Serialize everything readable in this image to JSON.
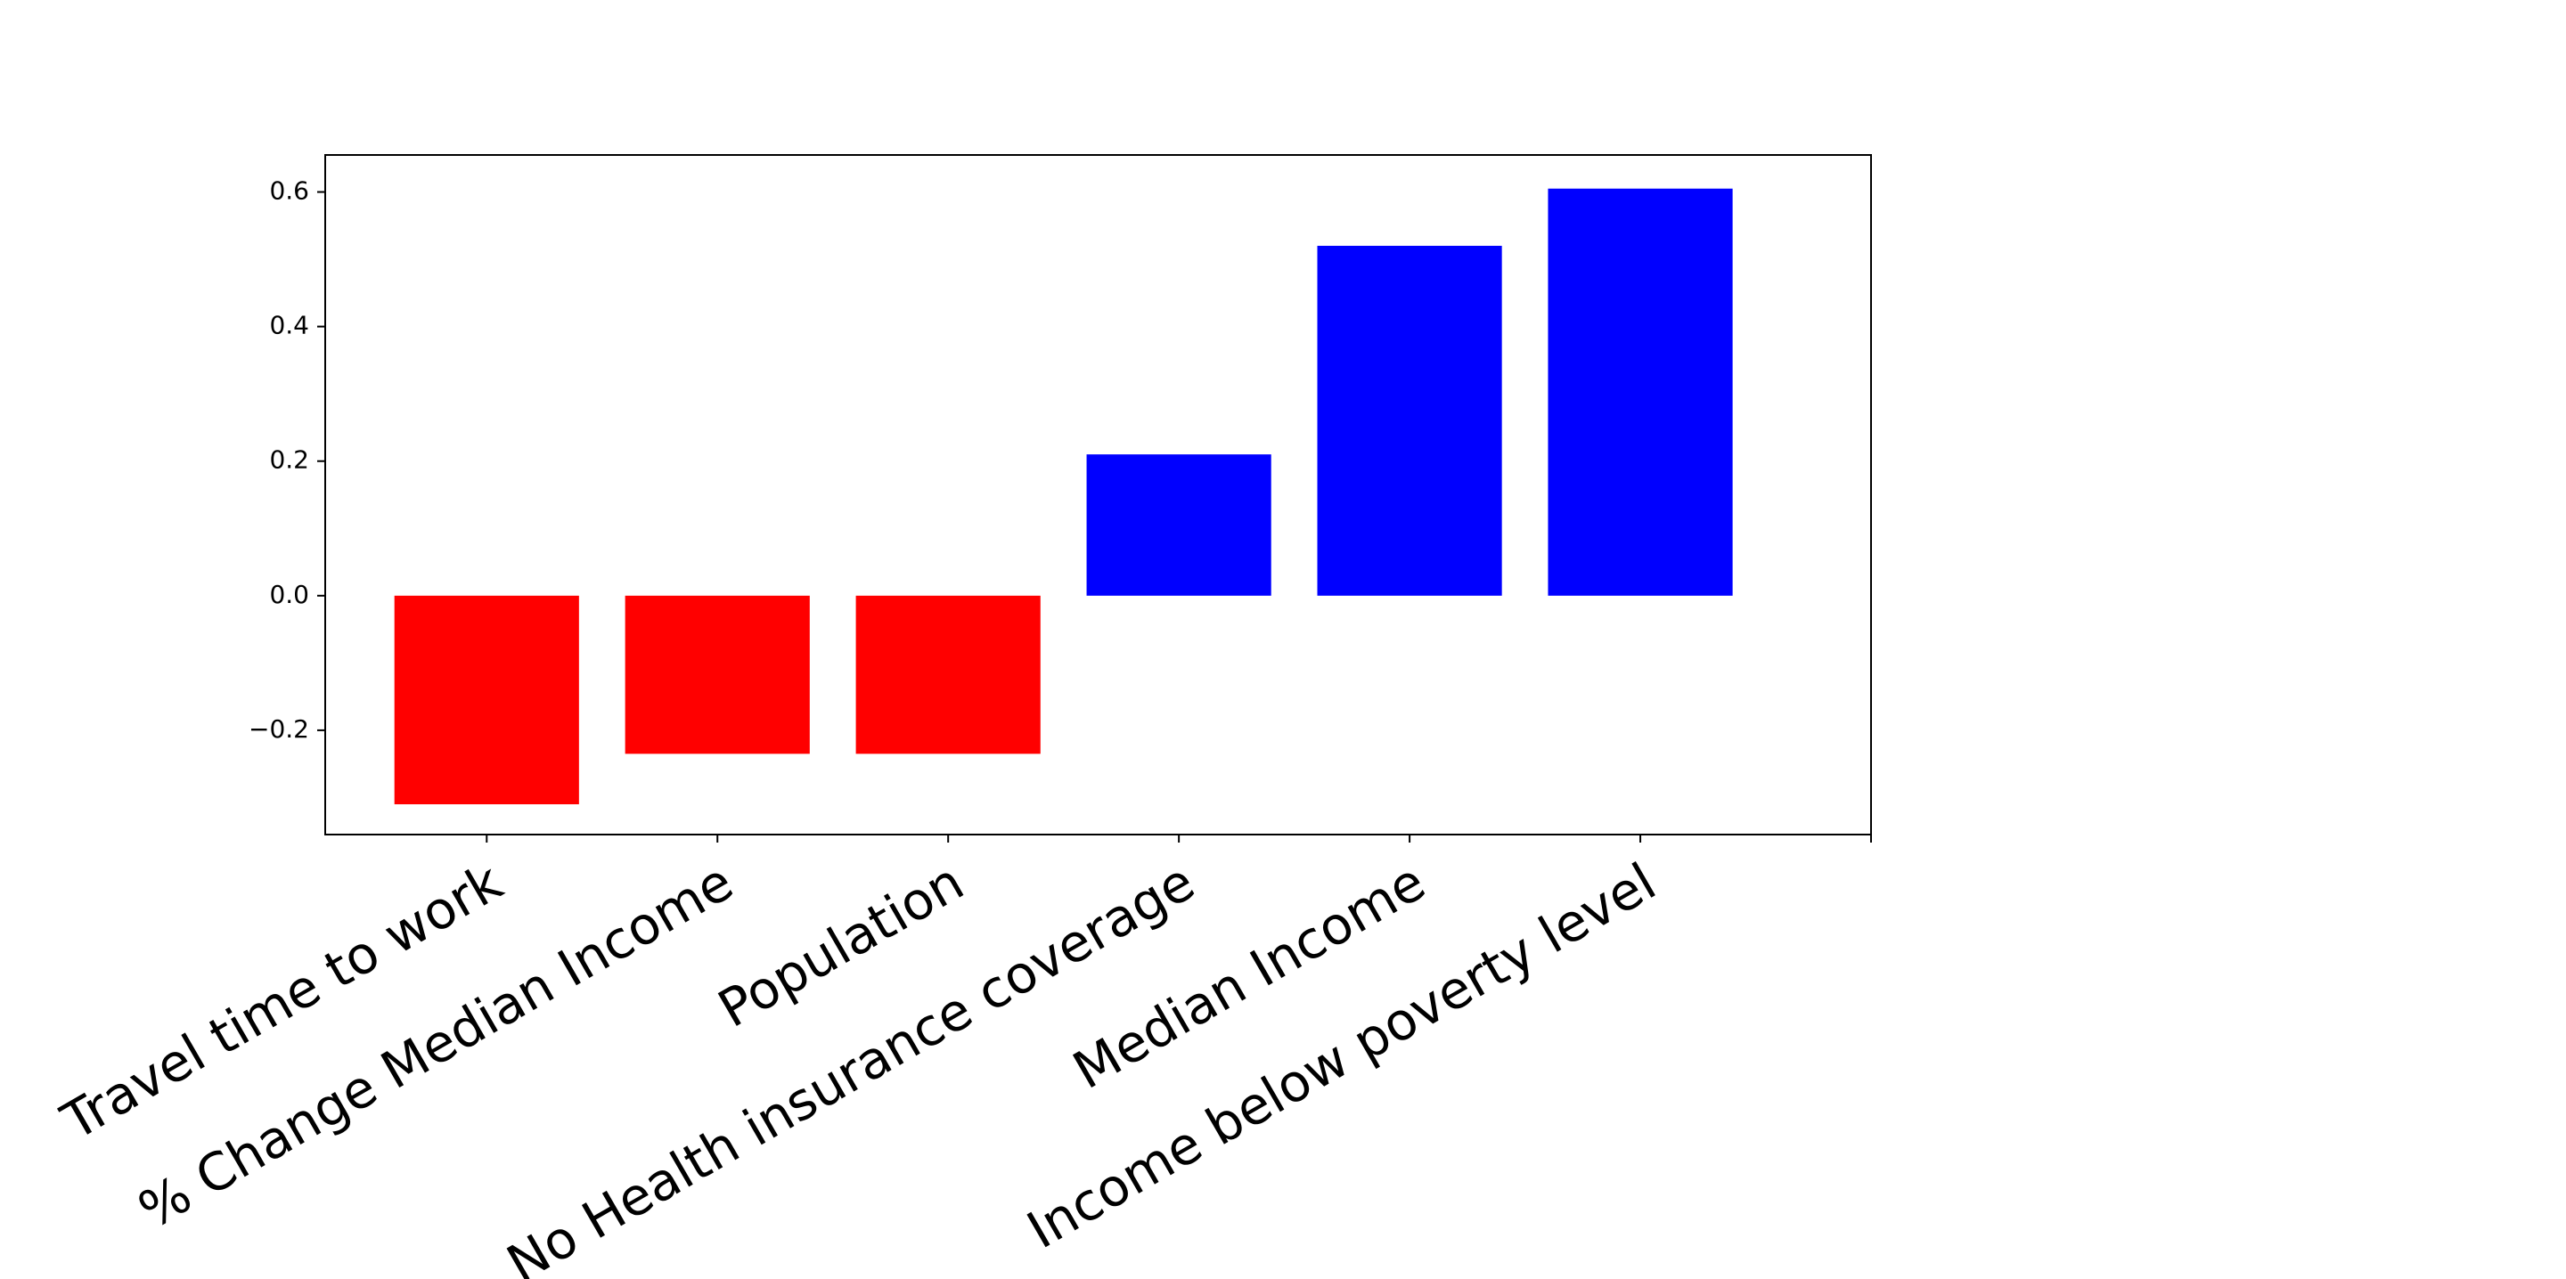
{
  "chart_data": {
    "type": "bar",
    "title": "",
    "xlabel": "",
    "ylabel": "",
    "categories": [
      "Travel time to work",
      "% Change Median Income",
      "Population",
      "No Health insurance coverage",
      "Median Income",
      "Income below poverty level"
    ],
    "values": [
      -0.31,
      -0.235,
      -0.235,
      0.21,
      0.52,
      0.605
    ],
    "bar_colors": [
      "#ff0000",
      "#ff0000",
      "#ff0000",
      "#0000ff",
      "#0000ff",
      "#0000ff"
    ],
    "ylim": [
      -0.355,
      0.655
    ],
    "xlim": [
      -0.7,
      6.0
    ],
    "yticks": [
      -0.2,
      0.0,
      0.2,
      0.4,
      0.6
    ],
    "ytick_labels": [
      "−0.2",
      "0.0",
      "0.2",
      "0.4",
      "0.6"
    ],
    "xtick_positions": [
      0,
      1,
      2,
      3,
      4,
      5,
      6
    ],
    "grid": false,
    "legend": "none",
    "label_rotation_deg": 30
  }
}
